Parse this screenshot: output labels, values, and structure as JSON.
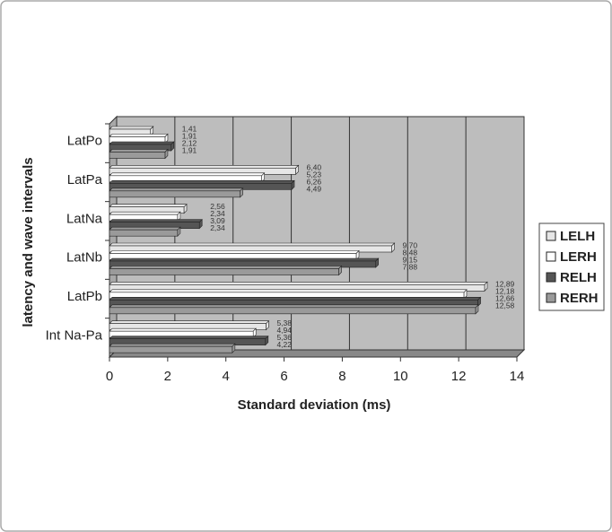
{
  "chart_data": {
    "type": "bar",
    "orientation": "horizontal",
    "x_label": "Standard deviation (ms)",
    "y_label": "latency and wave intervals",
    "categories": [
      "LatPo",
      "LatPa",
      "LatNa",
      "LatNb",
      "LatPb",
      "Int Na-Pa"
    ],
    "series": [
      {
        "name": "LELH",
        "color": "#e6e6e6",
        "values": [
          1.41,
          6.4,
          2.56,
          9.7,
          12.89,
          5.38
        ],
        "value_labels": [
          "1,41",
          "6,40",
          "2,56",
          "9,70",
          "12,89",
          "5,38"
        ]
      },
      {
        "name": "LERH",
        "color": "#ffffff",
        "values": [
          1.91,
          5.23,
          2.34,
          8.48,
          12.18,
          4.94
        ],
        "value_labels": [
          "1,91",
          "5,23",
          "2,34",
          "8,48",
          "12,18",
          "4,94"
        ]
      },
      {
        "name": "RELH",
        "color": "#555555",
        "values": [
          2.12,
          6.26,
          3.09,
          9.15,
          12.66,
          5.36
        ],
        "value_labels": [
          "2,12",
          "6,26",
          "3,09",
          "9,15",
          "12,66",
          "5,36"
        ]
      },
      {
        "name": "RERH",
        "color": "#9a9a9a",
        "values": [
          1.91,
          4.49,
          2.34,
          7.88,
          12.58,
          4.22
        ],
        "value_labels": [
          "1,91",
          "4,49",
          "2,34",
          "7,88",
          "12,58",
          "4,22"
        ]
      }
    ],
    "xlim": [
      0,
      14
    ],
    "xticks": [
      0,
      2,
      4,
      6,
      8,
      10,
      12,
      14
    ],
    "grid": true,
    "legend": "right"
  }
}
